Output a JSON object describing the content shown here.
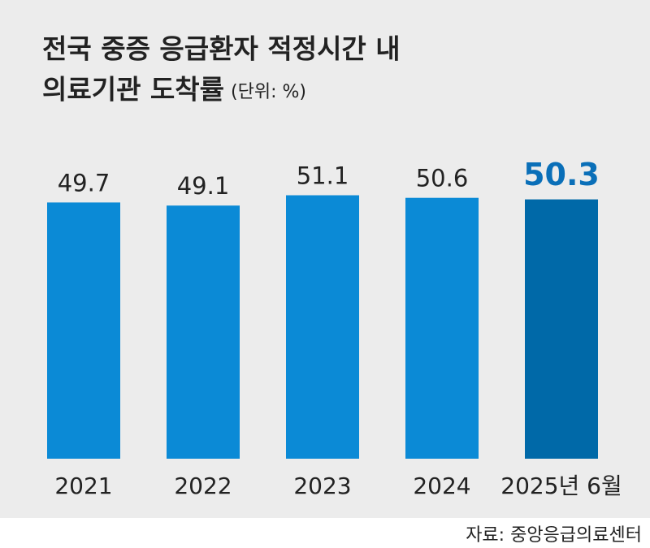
{
  "chart_data": {
    "type": "bar",
    "title": [
      "전국 중증 응급환자 적정시간 내",
      "의료기관 도착률"
    ],
    "unit": "(단위: %)",
    "categories": [
      "2021",
      "2022",
      "2023",
      "2024",
      "2025년 6월"
    ],
    "values": [
      49.7,
      49.1,
      51.1,
      50.6,
      50.3
    ],
    "colors": [
      "#0b8ad6",
      "#0b8ad6",
      "#0b8ad6",
      "#0b8ad6",
      "#0069a8"
    ],
    "ylim": [
      0,
      60
    ],
    "source": "자료: 중앙응급의료센터"
  }
}
